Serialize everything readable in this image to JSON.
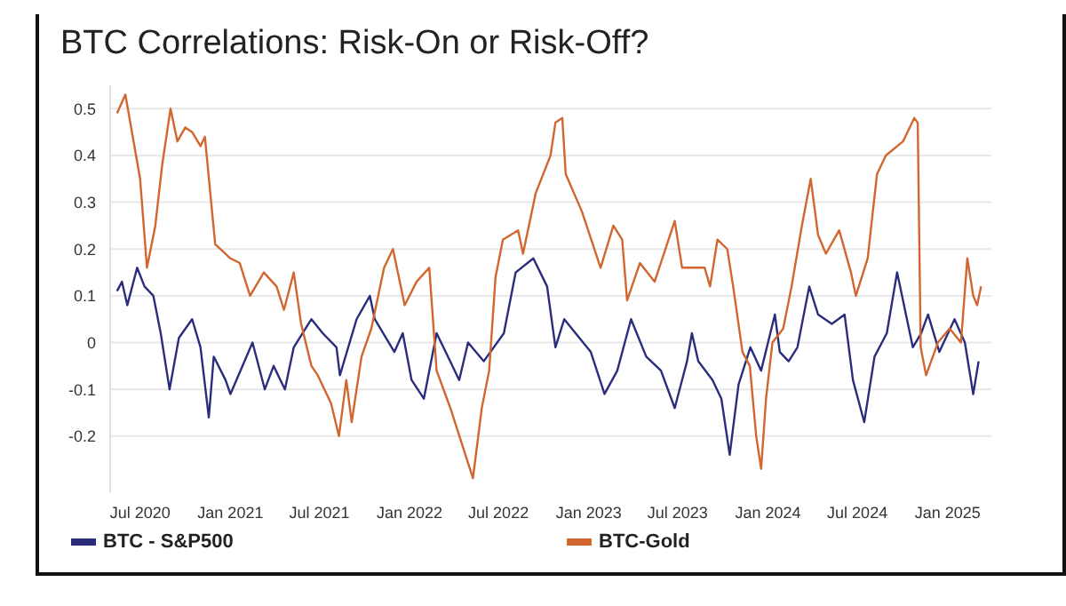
{
  "chart_data": {
    "type": "line",
    "title": "BTC Correlations: Risk-On or Risk-Off?",
    "xlim": [
      "2020-05-01",
      "2025-03-31"
    ],
    "xticks": [
      {
        "value": "2020-07-01",
        "label": "Jul 2020"
      },
      {
        "value": "2021-01-01",
        "label": "Jan 2021"
      },
      {
        "value": "2021-07-01",
        "label": "Jul 2021"
      },
      {
        "value": "2022-01-01",
        "label": "Jan 2022"
      },
      {
        "value": "2022-07-01",
        "label": "Jul 2022"
      },
      {
        "value": "2023-01-01",
        "label": "Jan 2023"
      },
      {
        "value": "2023-07-01",
        "label": "Jul 2023"
      },
      {
        "value": "2024-01-01",
        "label": "Jan 2024"
      },
      {
        "value": "2024-07-01",
        "label": "Jul 2024"
      },
      {
        "value": "2025-01-01",
        "label": "Jan 2025"
      }
    ],
    "ylim": [
      -0.32,
      0.55
    ],
    "yticks": [
      -0.2,
      -0.1,
      0,
      0.1,
      0.2,
      0.3,
      0.4,
      0.5
    ],
    "grid": "y",
    "legend": "bottom",
    "marker": "none",
    "line_style": "solid",
    "series": [
      {
        "name": "BTC - S&P500",
        "color": "#2b2d7c",
        "x": [
          "2020-05-15",
          "2020-05-25",
          "2020-06-05",
          "2020-06-25",
          "2020-07-10",
          "2020-07-28",
          "2020-08-12",
          "2020-08-30",
          "2020-09-18",
          "2020-10-15",
          "2020-11-01",
          "2020-11-18",
          "2020-11-28",
          "2020-12-22",
          "2021-01-01",
          "2021-02-15",
          "2021-03-12",
          "2021-03-30",
          "2021-04-22",
          "2021-05-10",
          "2021-06-15",
          "2021-07-08",
          "2021-08-05",
          "2021-08-12",
          "2021-09-15",
          "2021-10-12",
          "2021-10-22",
          "2021-12-01",
          "2021-12-18",
          "2022-01-05",
          "2022-01-30",
          "2022-02-25",
          "2022-04-12",
          "2022-04-30",
          "2022-06-01",
          "2022-07-12",
          "2022-08-05",
          "2022-09-10",
          "2022-10-08",
          "2022-10-25",
          "2022-11-12",
          "2022-12-05",
          "2023-01-05",
          "2023-02-02",
          "2023-02-28",
          "2023-03-28",
          "2023-04-28",
          "2023-05-28",
          "2023-06-25",
          "2023-07-20",
          "2023-07-30",
          "2023-08-12",
          "2023-09-10",
          "2023-09-28",
          "2023-10-15",
          "2023-11-02",
          "2023-11-26",
          "2023-12-18",
          "2024-01-15",
          "2024-01-25",
          "2024-02-12",
          "2024-03-01",
          "2024-03-25",
          "2024-04-12",
          "2024-05-10",
          "2024-06-05",
          "2024-06-22",
          "2024-07-15",
          "2024-08-05",
          "2024-08-30",
          "2024-09-20",
          "2024-10-12",
          "2024-10-22",
          "2024-11-08",
          "2024-11-22",
          "2024-12-15",
          "2025-01-15",
          "2025-02-05",
          "2025-02-22",
          "2025-03-05"
        ],
        "values": [
          0.11,
          0.13,
          0.08,
          0.16,
          0.12,
          0.1,
          0.02,
          -0.1,
          0.01,
          0.05,
          -0.01,
          -0.16,
          -0.03,
          -0.08,
          -0.11,
          0.0,
          -0.1,
          -0.05,
          -0.1,
          -0.01,
          0.05,
          0.02,
          -0.01,
          -0.07,
          0.05,
          0.1,
          0.05,
          -0.02,
          0.02,
          -0.08,
          -0.12,
          0.02,
          -0.08,
          0.0,
          -0.04,
          0.02,
          0.15,
          0.18,
          0.12,
          -0.01,
          0.05,
          0.02,
          -0.02,
          -0.11,
          -0.06,
          0.05,
          -0.03,
          -0.06,
          -0.14,
          -0.04,
          0.02,
          -0.04,
          -0.08,
          -0.12,
          -0.24,
          -0.09,
          -0.01,
          -0.06,
          0.06,
          -0.02,
          -0.04,
          -0.01,
          0.12,
          0.06,
          0.04,
          0.06,
          -0.08,
          -0.17,
          -0.03,
          0.02,
          0.15,
          0.04,
          -0.01,
          0.02,
          0.06,
          -0.02,
          0.05,
          0.0,
          -0.11,
          -0.04
        ]
      },
      {
        "name": "BTC-Gold",
        "color": "#d2662f",
        "x": [
          "2020-05-15",
          "2020-06-01",
          "2020-07-01",
          "2020-07-15",
          "2020-08-01",
          "2020-08-15",
          "2020-09-01",
          "2020-09-15",
          "2020-10-01",
          "2020-10-15",
          "2020-11-01",
          "2020-11-10",
          "2020-12-01",
          "2021-01-01",
          "2021-01-20",
          "2021-02-10",
          "2021-03-10",
          "2021-04-05",
          "2021-04-20",
          "2021-05-10",
          "2021-05-25",
          "2021-06-15",
          "2021-06-28",
          "2021-07-25",
          "2021-08-10",
          "2021-08-25",
          "2021-09-05",
          "2021-09-25",
          "2021-10-15",
          "2021-11-10",
          "2021-11-28",
          "2021-12-22",
          "2022-01-15",
          "2022-02-10",
          "2022-02-25",
          "2022-03-25",
          "2022-05-10",
          "2022-05-28",
          "2022-06-12",
          "2022-06-25",
          "2022-07-10",
          "2022-08-10",
          "2022-08-20",
          "2022-09-15",
          "2022-10-15",
          "2022-10-25",
          "2022-11-08",
          "2022-11-15",
          "2022-12-18",
          "2023-01-25",
          "2023-02-20",
          "2023-03-10",
          "2023-03-20",
          "2023-04-15",
          "2023-05-15",
          "2023-06-25",
          "2023-07-10",
          "2023-08-25",
          "2023-09-05",
          "2023-09-20",
          "2023-10-10",
          "2023-10-22",
          "2023-11-10",
          "2023-11-25",
          "2023-12-08",
          "2023-12-18",
          "2023-12-28",
          "2024-01-10",
          "2024-02-01",
          "2024-02-18",
          "2024-03-10",
          "2024-03-28",
          "2024-04-12",
          "2024-04-28",
          "2024-05-25",
          "2024-06-18",
          "2024-06-28",
          "2024-07-22",
          "2024-08-10",
          "2024-08-28",
          "2024-10-02",
          "2024-10-25",
          "2024-11-01",
          "2024-11-07",
          "2024-11-18",
          "2024-12-12",
          "2025-01-05",
          "2025-01-28",
          "2025-02-10",
          "2025-02-22",
          "2025-03-02",
          "2025-03-10"
        ],
        "values": [
          0.49,
          0.53,
          0.35,
          0.16,
          0.25,
          0.38,
          0.5,
          0.43,
          0.46,
          0.45,
          0.42,
          0.44,
          0.21,
          0.18,
          0.17,
          0.1,
          0.15,
          0.12,
          0.07,
          0.15,
          0.04,
          -0.05,
          -0.07,
          -0.13,
          -0.2,
          -0.08,
          -0.17,
          -0.03,
          0.03,
          0.16,
          0.2,
          0.08,
          0.13,
          0.16,
          -0.06,
          -0.14,
          -0.29,
          -0.14,
          -0.06,
          0.14,
          0.22,
          0.24,
          0.19,
          0.32,
          0.4,
          0.47,
          0.48,
          0.36,
          0.28,
          0.16,
          0.25,
          0.22,
          0.09,
          0.17,
          0.13,
          0.26,
          0.16,
          0.16,
          0.12,
          0.22,
          0.2,
          0.12,
          -0.02,
          -0.05,
          -0.2,
          -0.27,
          -0.12,
          0.0,
          0.03,
          0.12,
          0.25,
          0.35,
          0.23,
          0.19,
          0.24,
          0.15,
          0.1,
          0.18,
          0.36,
          0.4,
          0.43,
          0.48,
          0.47,
          -0.01,
          -0.07,
          0.0,
          0.03,
          0.0,
          0.18,
          0.1,
          0.08,
          0.12
        ]
      }
    ]
  }
}
